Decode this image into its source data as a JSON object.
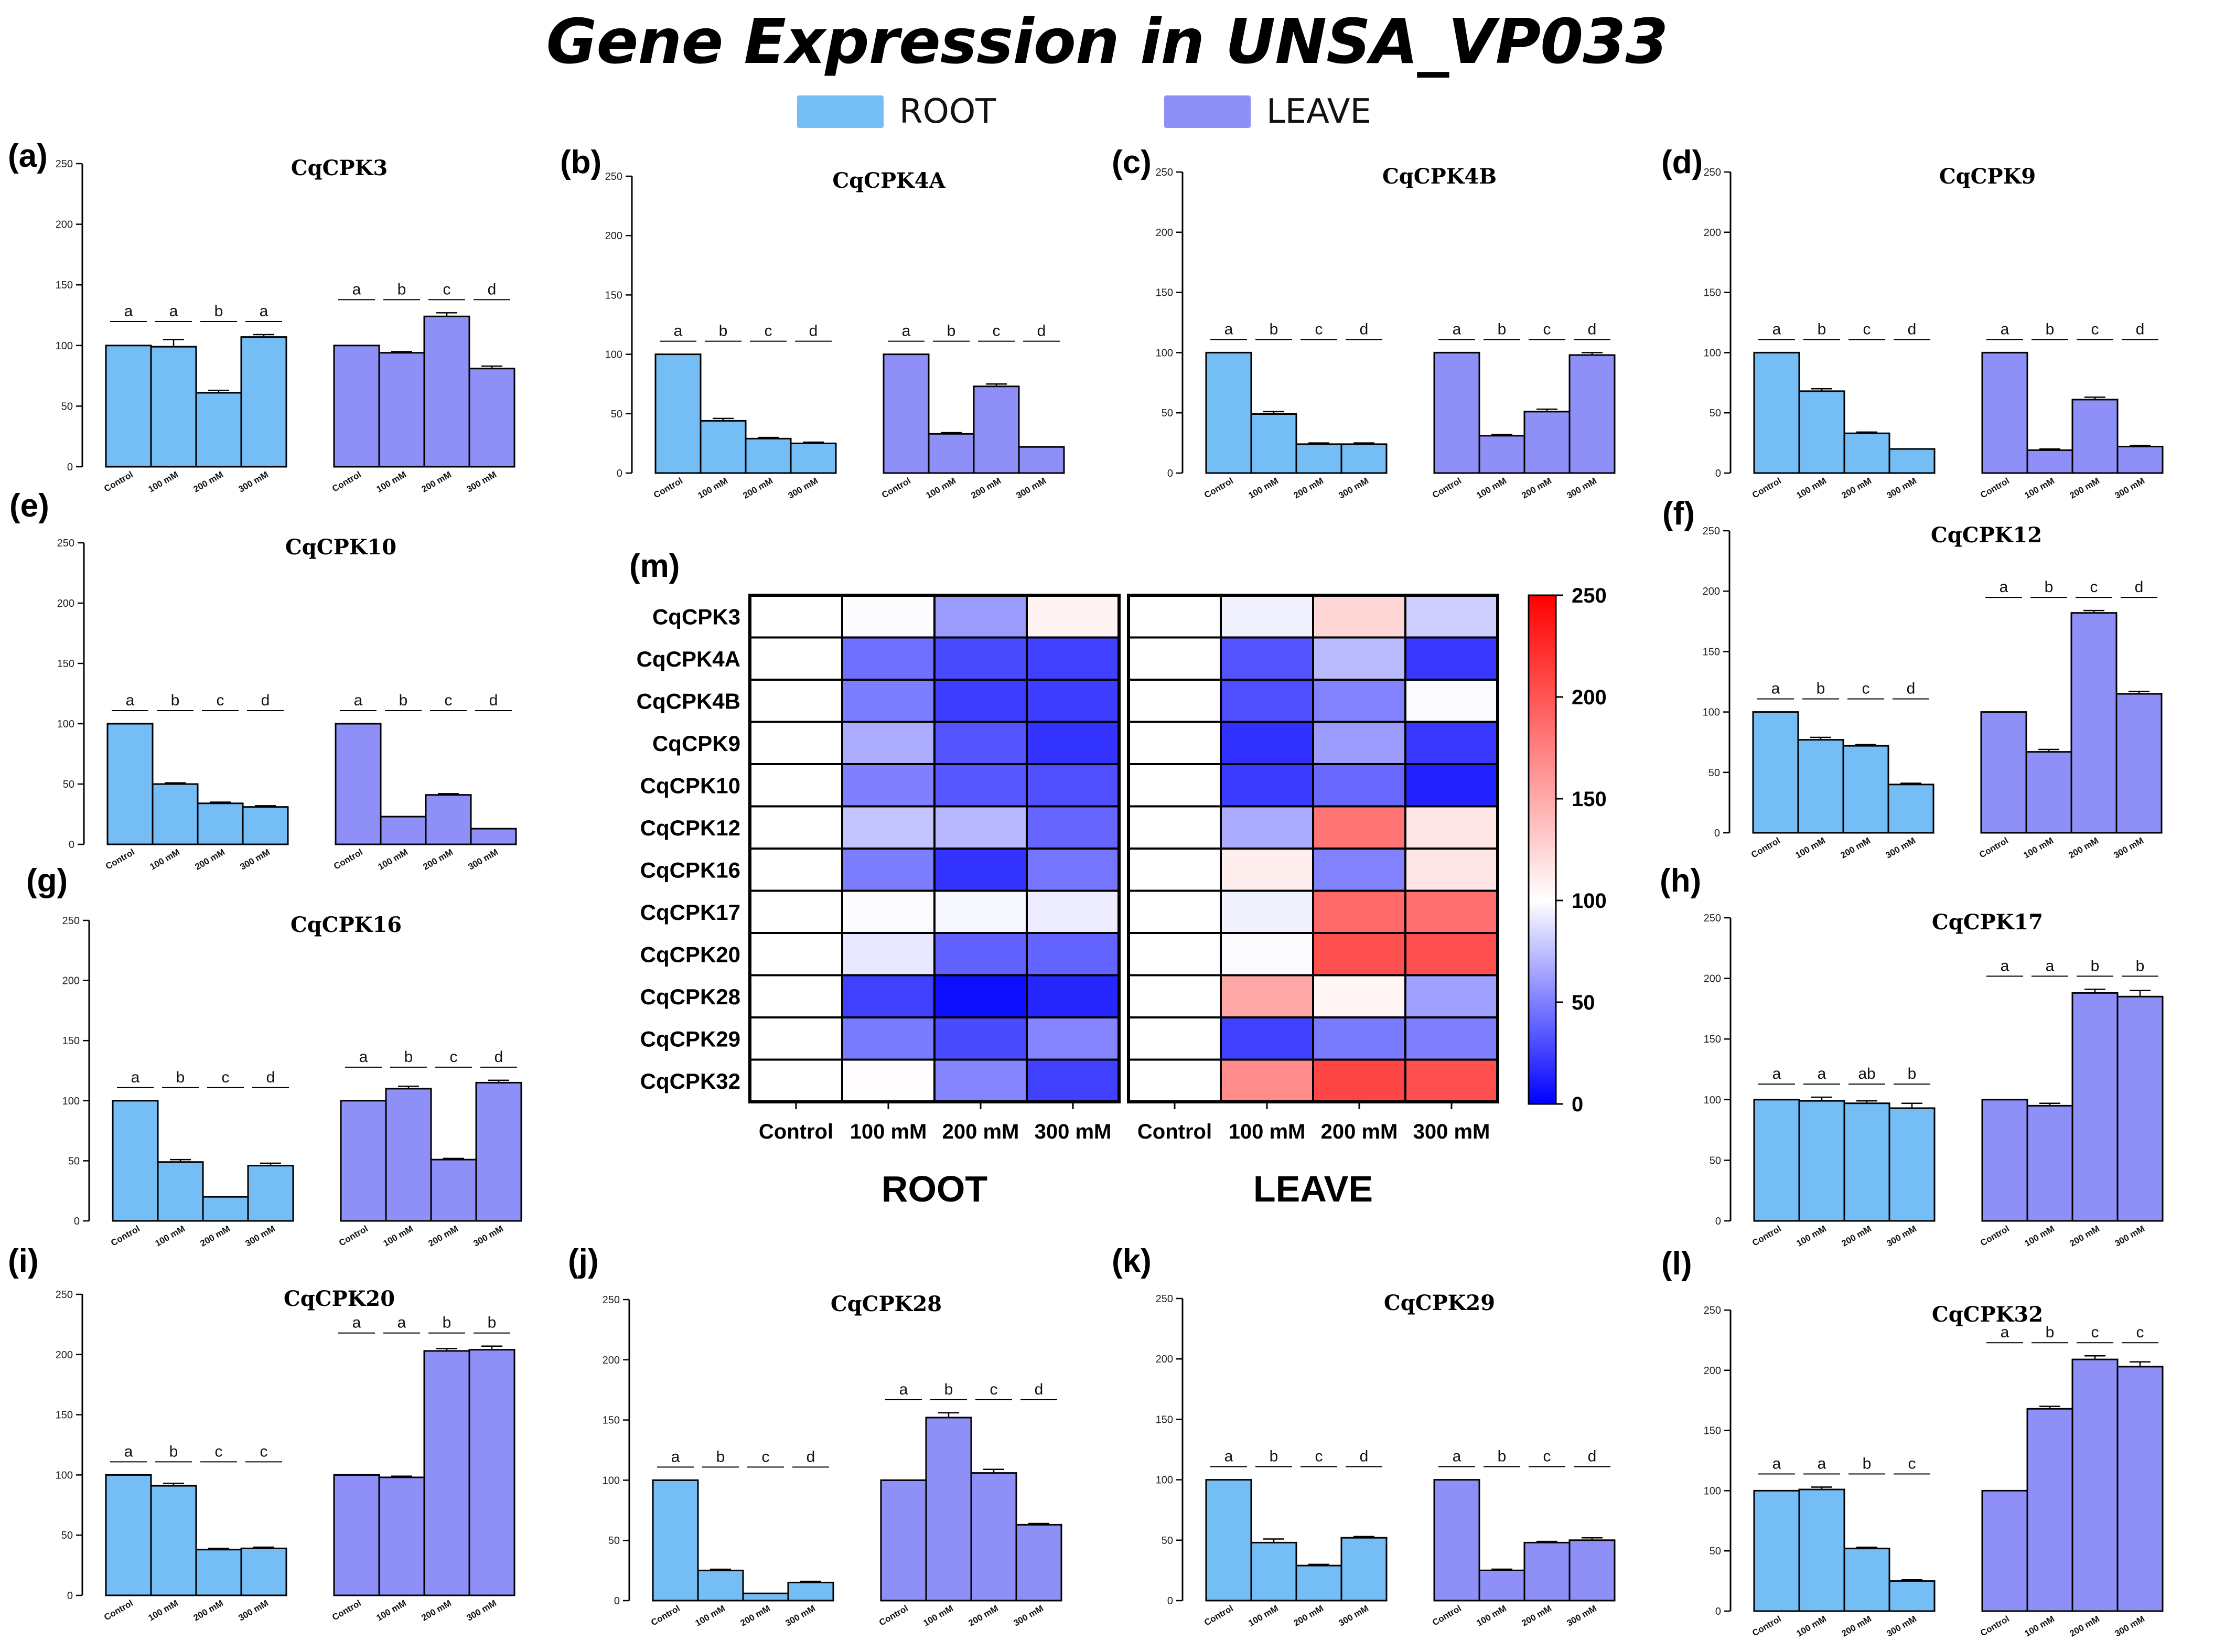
{
  "figure": {
    "title": "Gene Expression in UNSA_VP033",
    "legend": [
      {
        "label": "ROOT",
        "color": "#74bdf5"
      },
      {
        "label": "LEAVE",
        "color": "#8f8ff8"
      }
    ],
    "colors": {
      "root": "#74bdf5",
      "leave": "#8f8ff8"
    }
  },
  "chart_data": [
    {
      "type": "bar",
      "panel_label": "(a)",
      "title": "CqCPK3",
      "ylim": [
        0,
        250
      ],
      "yticks": [
        "0",
        "50",
        "100",
        "150",
        "200",
        "250"
      ],
      "categories": [
        "Control",
        "100 mM",
        "200 mM",
        "300 mM"
      ],
      "series": [
        {
          "name": "ROOT",
          "values": [
            100,
            99,
            61,
            107
          ],
          "errors": [
            0,
            6,
            2,
            2
          ],
          "letters": [
            "a",
            "a",
            "b",
            "a"
          ]
        },
        {
          "name": "LEAVE",
          "values": [
            100,
            94,
            124,
            81
          ],
          "errors": [
            0,
            1,
            3,
            2
          ],
          "letters": [
            "a",
            "b",
            "c",
            "d"
          ]
        }
      ]
    },
    {
      "type": "bar",
      "panel_label": "(b)",
      "title": "CqCPK4A",
      "ylim": [
        0,
        250
      ],
      "yticks": [
        "0",
        "50",
        "100",
        "150",
        "200",
        "250"
      ],
      "categories": [
        "Control",
        "100 mM",
        "200 mM",
        "300 mM"
      ],
      "series": [
        {
          "name": "ROOT",
          "values": [
            100,
            44,
            29,
            25
          ],
          "errors": [
            0,
            2,
            1,
            1
          ],
          "letters": [
            "a",
            "b",
            "c",
            "d"
          ]
        },
        {
          "name": "LEAVE",
          "values": [
            100,
            33,
            73,
            22
          ],
          "errors": [
            0,
            1,
            2,
            0
          ],
          "letters": [
            "a",
            "b",
            "c",
            "d"
          ]
        }
      ]
    },
    {
      "type": "bar",
      "panel_label": "(c)",
      "title": "CqCPK4B",
      "ylim": [
        0,
        250
      ],
      "yticks": [
        "0",
        "50",
        "100",
        "150",
        "200",
        "250"
      ],
      "categories": [
        "Control",
        "100 mM",
        "200 mM",
        "300 mM"
      ],
      "series": [
        {
          "name": "ROOT",
          "values": [
            100,
            49,
            24,
            24
          ],
          "errors": [
            0,
            2,
            1,
            1
          ],
          "letters": [
            "a",
            "b",
            "c",
            "d"
          ]
        },
        {
          "name": "LEAVE",
          "values": [
            100,
            31,
            51,
            98
          ],
          "errors": [
            0,
            1,
            2,
            2
          ],
          "letters": [
            "a",
            "b",
            "c",
            "d"
          ]
        }
      ]
    },
    {
      "type": "bar",
      "panel_label": "(d)",
      "title": "CqCPK9",
      "ylim": [
        0,
        250
      ],
      "yticks": [
        "0",
        "50",
        "100",
        "150",
        "200",
        "250"
      ],
      "categories": [
        "Control",
        "100 mM",
        "200 mM",
        "300 mM"
      ],
      "series": [
        {
          "name": "ROOT",
          "values": [
            100,
            68,
            33,
            20
          ],
          "errors": [
            0,
            2,
            1,
            0
          ],
          "letters": [
            "a",
            "b",
            "c",
            "d"
          ]
        },
        {
          "name": "LEAVE",
          "values": [
            100,
            19,
            61,
            22
          ],
          "errors": [
            0,
            1,
            2,
            1
          ],
          "letters": [
            "a",
            "b",
            "c",
            "d"
          ]
        }
      ]
    },
    {
      "type": "bar",
      "panel_label": "(e)",
      "title": "CqCPK10",
      "ylim": [
        0,
        250
      ],
      "yticks": [
        "0",
        "50",
        "100",
        "150",
        "200",
        "250"
      ],
      "categories": [
        "Control",
        "100 mM",
        "200 mM",
        "300 mM"
      ],
      "series": [
        {
          "name": "ROOT",
          "values": [
            100,
            50,
            34,
            31
          ],
          "errors": [
            0,
            1,
            1,
            1
          ],
          "letters": [
            "a",
            "b",
            "c",
            "d"
          ]
        },
        {
          "name": "LEAVE",
          "values": [
            100,
            23,
            41,
            13
          ],
          "errors": [
            0,
            0,
            1,
            0
          ],
          "letters": [
            "a",
            "b",
            "c",
            "d"
          ]
        }
      ]
    },
    {
      "type": "bar",
      "panel_label": "(f)",
      "title": "CqCPK12",
      "ylim": [
        0,
        250
      ],
      "yticks": [
        "0",
        "50",
        "100",
        "150",
        "200",
        "250"
      ],
      "categories": [
        "Control",
        "100 mM",
        "200 mM",
        "300 mM"
      ],
      "series": [
        {
          "name": "ROOT",
          "values": [
            100,
            77,
            72,
            40
          ],
          "errors": [
            0,
            2,
            1,
            1
          ],
          "letters": [
            "a",
            "b",
            "c",
            "d"
          ]
        },
        {
          "name": "LEAVE",
          "values": [
            100,
            67,
            182,
            115
          ],
          "errors": [
            0,
            2,
            2,
            2
          ],
          "letters": [
            "a",
            "b",
            "c",
            "d"
          ]
        }
      ]
    },
    {
      "type": "bar",
      "panel_label": "(g)",
      "title": "CqCPK16",
      "ylim": [
        0,
        250
      ],
      "yticks": [
        "0",
        "50",
        "100",
        "150",
        "200",
        "250"
      ],
      "categories": [
        "Control",
        "100 mM",
        "200 mM",
        "300 mM"
      ],
      "series": [
        {
          "name": "ROOT",
          "values": [
            100,
            49,
            20,
            46
          ],
          "errors": [
            0,
            2,
            0,
            2
          ],
          "letters": [
            "a",
            "b",
            "c",
            "d"
          ]
        },
        {
          "name": "LEAVE",
          "values": [
            100,
            110,
            51,
            115
          ],
          "errors": [
            0,
            2,
            1,
            2
          ],
          "letters": [
            "a",
            "b",
            "c",
            "d"
          ]
        }
      ]
    },
    {
      "type": "bar",
      "panel_label": "(h)",
      "title": "CqCPK17",
      "ylim": [
        0,
        250
      ],
      "yticks": [
        "0",
        "50",
        "100",
        "150",
        "200",
        "250"
      ],
      "categories": [
        "Control",
        "100 mM",
        "200 mM",
        "300 mM"
      ],
      "series": [
        {
          "name": "ROOT",
          "values": [
            100,
            99,
            97,
            93
          ],
          "errors": [
            0,
            3,
            2,
            4
          ],
          "letters": [
            "a",
            "a",
            "ab",
            "b"
          ]
        },
        {
          "name": "LEAVE",
          "values": [
            100,
            95,
            188,
            185
          ],
          "errors": [
            0,
            2,
            3,
            5
          ],
          "letters": [
            "a",
            "a",
            "b",
            "b"
          ]
        }
      ]
    },
    {
      "type": "bar",
      "panel_label": "(i)",
      "title": "CqCPK20",
      "ylim": [
        0,
        250
      ],
      "yticks": [
        "0",
        "50",
        "100",
        "150",
        "200",
        "250"
      ],
      "categories": [
        "Control",
        "100 mM",
        "200 mM",
        "300 mM"
      ],
      "series": [
        {
          "name": "ROOT",
          "values": [
            100,
            91,
            38,
            39
          ],
          "errors": [
            0,
            2,
            1,
            1
          ],
          "letters": [
            "a",
            "b",
            "c",
            "c"
          ]
        },
        {
          "name": "LEAVE",
          "values": [
            100,
            98,
            203,
            204
          ],
          "errors": [
            0,
            1,
            2,
            3
          ],
          "letters": [
            "a",
            "a",
            "b",
            "b"
          ]
        }
      ]
    },
    {
      "type": "bar",
      "panel_label": "(j)",
      "title": "CqCPK28",
      "ylim": [
        0,
        250
      ],
      "yticks": [
        "0",
        "50",
        "100",
        "150",
        "200",
        "250"
      ],
      "categories": [
        "Control",
        "100 mM",
        "200 mM",
        "300 mM"
      ],
      "series": [
        {
          "name": "ROOT",
          "values": [
            100,
            25,
            6,
            15
          ],
          "errors": [
            0,
            1,
            0,
            1
          ],
          "letters": [
            "a",
            "b",
            "c",
            "d"
          ]
        },
        {
          "name": "LEAVE",
          "values": [
            100,
            152,
            106,
            63
          ],
          "errors": [
            0,
            4,
            3,
            1
          ],
          "letters": [
            "a",
            "b",
            "c",
            "d"
          ]
        }
      ]
    },
    {
      "type": "bar",
      "panel_label": "(k)",
      "title": "CqCPK29",
      "ylim": [
        0,
        250
      ],
      "yticks": [
        "0",
        "50",
        "100",
        "150",
        "200",
        "250"
      ],
      "categories": [
        "Control",
        "100 mM",
        "200 mM",
        "300 mM"
      ],
      "series": [
        {
          "name": "ROOT",
          "values": [
            100,
            48,
            29,
            52
          ],
          "errors": [
            0,
            3,
            1,
            1
          ],
          "letters": [
            "a",
            "b",
            "c",
            "d"
          ]
        },
        {
          "name": "LEAVE",
          "values": [
            100,
            25,
            48,
            50
          ],
          "errors": [
            0,
            1,
            1,
            2
          ],
          "letters": [
            "a",
            "b",
            "c",
            "d"
          ]
        }
      ]
    },
    {
      "type": "bar",
      "panel_label": "(l)",
      "title": "CqCPK32",
      "ylim": [
        0,
        250
      ],
      "yticks": [
        "0",
        "50",
        "100",
        "150",
        "200",
        "250"
      ],
      "categories": [
        "Control",
        "100 mM",
        "200 mM",
        "300 mM"
      ],
      "series": [
        {
          "name": "ROOT",
          "values": [
            100,
            101,
            52,
            25
          ],
          "errors": [
            0,
            2,
            1,
            1
          ],
          "letters": [
            "a",
            "a",
            "b",
            "c"
          ]
        },
        {
          "name": "LEAVE",
          "values": [
            100,
            168,
            209,
            203
          ],
          "errors": [
            0,
            2,
            3,
            4
          ],
          "letters": [
            "a",
            "b",
            "c",
            "c"
          ]
        }
      ]
    },
    {
      "type": "heatmap",
      "panel_label": "(m)",
      "rows": [
        "CqCPK3",
        "CqCPK4A",
        "CqCPK4B",
        "CqCPK9",
        "CqCPK10",
        "CqCPK12",
        "CqCPK16",
        "CqCPK17",
        "CqCPK20",
        "CqCPK28",
        "CqCPK29",
        "CqCPK32"
      ],
      "columns": [
        "Control",
        "100 mM",
        "200 mM",
        "300 mM",
        "Control",
        "100 mM",
        "200 mM",
        "300 mM"
      ],
      "groups": [
        "ROOT",
        "LEAVE"
      ],
      "values": [
        [
          100,
          99,
          61,
          107,
          100,
          94,
          124,
          81
        ],
        [
          100,
          44,
          29,
          25,
          100,
          33,
          73,
          22
        ],
        [
          100,
          49,
          24,
          24,
          100,
          31,
          51,
          98
        ],
        [
          100,
          68,
          33,
          20,
          100,
          19,
          61,
          22
        ],
        [
          100,
          50,
          34,
          31,
          100,
          23,
          41,
          13
        ],
        [
          100,
          77,
          72,
          40,
          100,
          67,
          182,
          115
        ],
        [
          100,
          49,
          20,
          46,
          100,
          110,
          51,
          115
        ],
        [
          100,
          99,
          97,
          93,
          100,
          95,
          188,
          185
        ],
        [
          100,
          91,
          38,
          39,
          100,
          98,
          203,
          204
        ],
        [
          100,
          25,
          6,
          15,
          100,
          152,
          106,
          63
        ],
        [
          100,
          48,
          29,
          52,
          100,
          25,
          48,
          50
        ],
        [
          100,
          101,
          52,
          25,
          100,
          168,
          209,
          203
        ]
      ],
      "colorbar": {
        "min": 0,
        "mid": 100,
        "max": 250,
        "ticks": [
          "0",
          "50",
          "100",
          "150",
          "200",
          "250"
        ],
        "low_color": "#0000ff",
        "mid_color": "#ffffff",
        "high_color": "#ff0000"
      }
    }
  ]
}
